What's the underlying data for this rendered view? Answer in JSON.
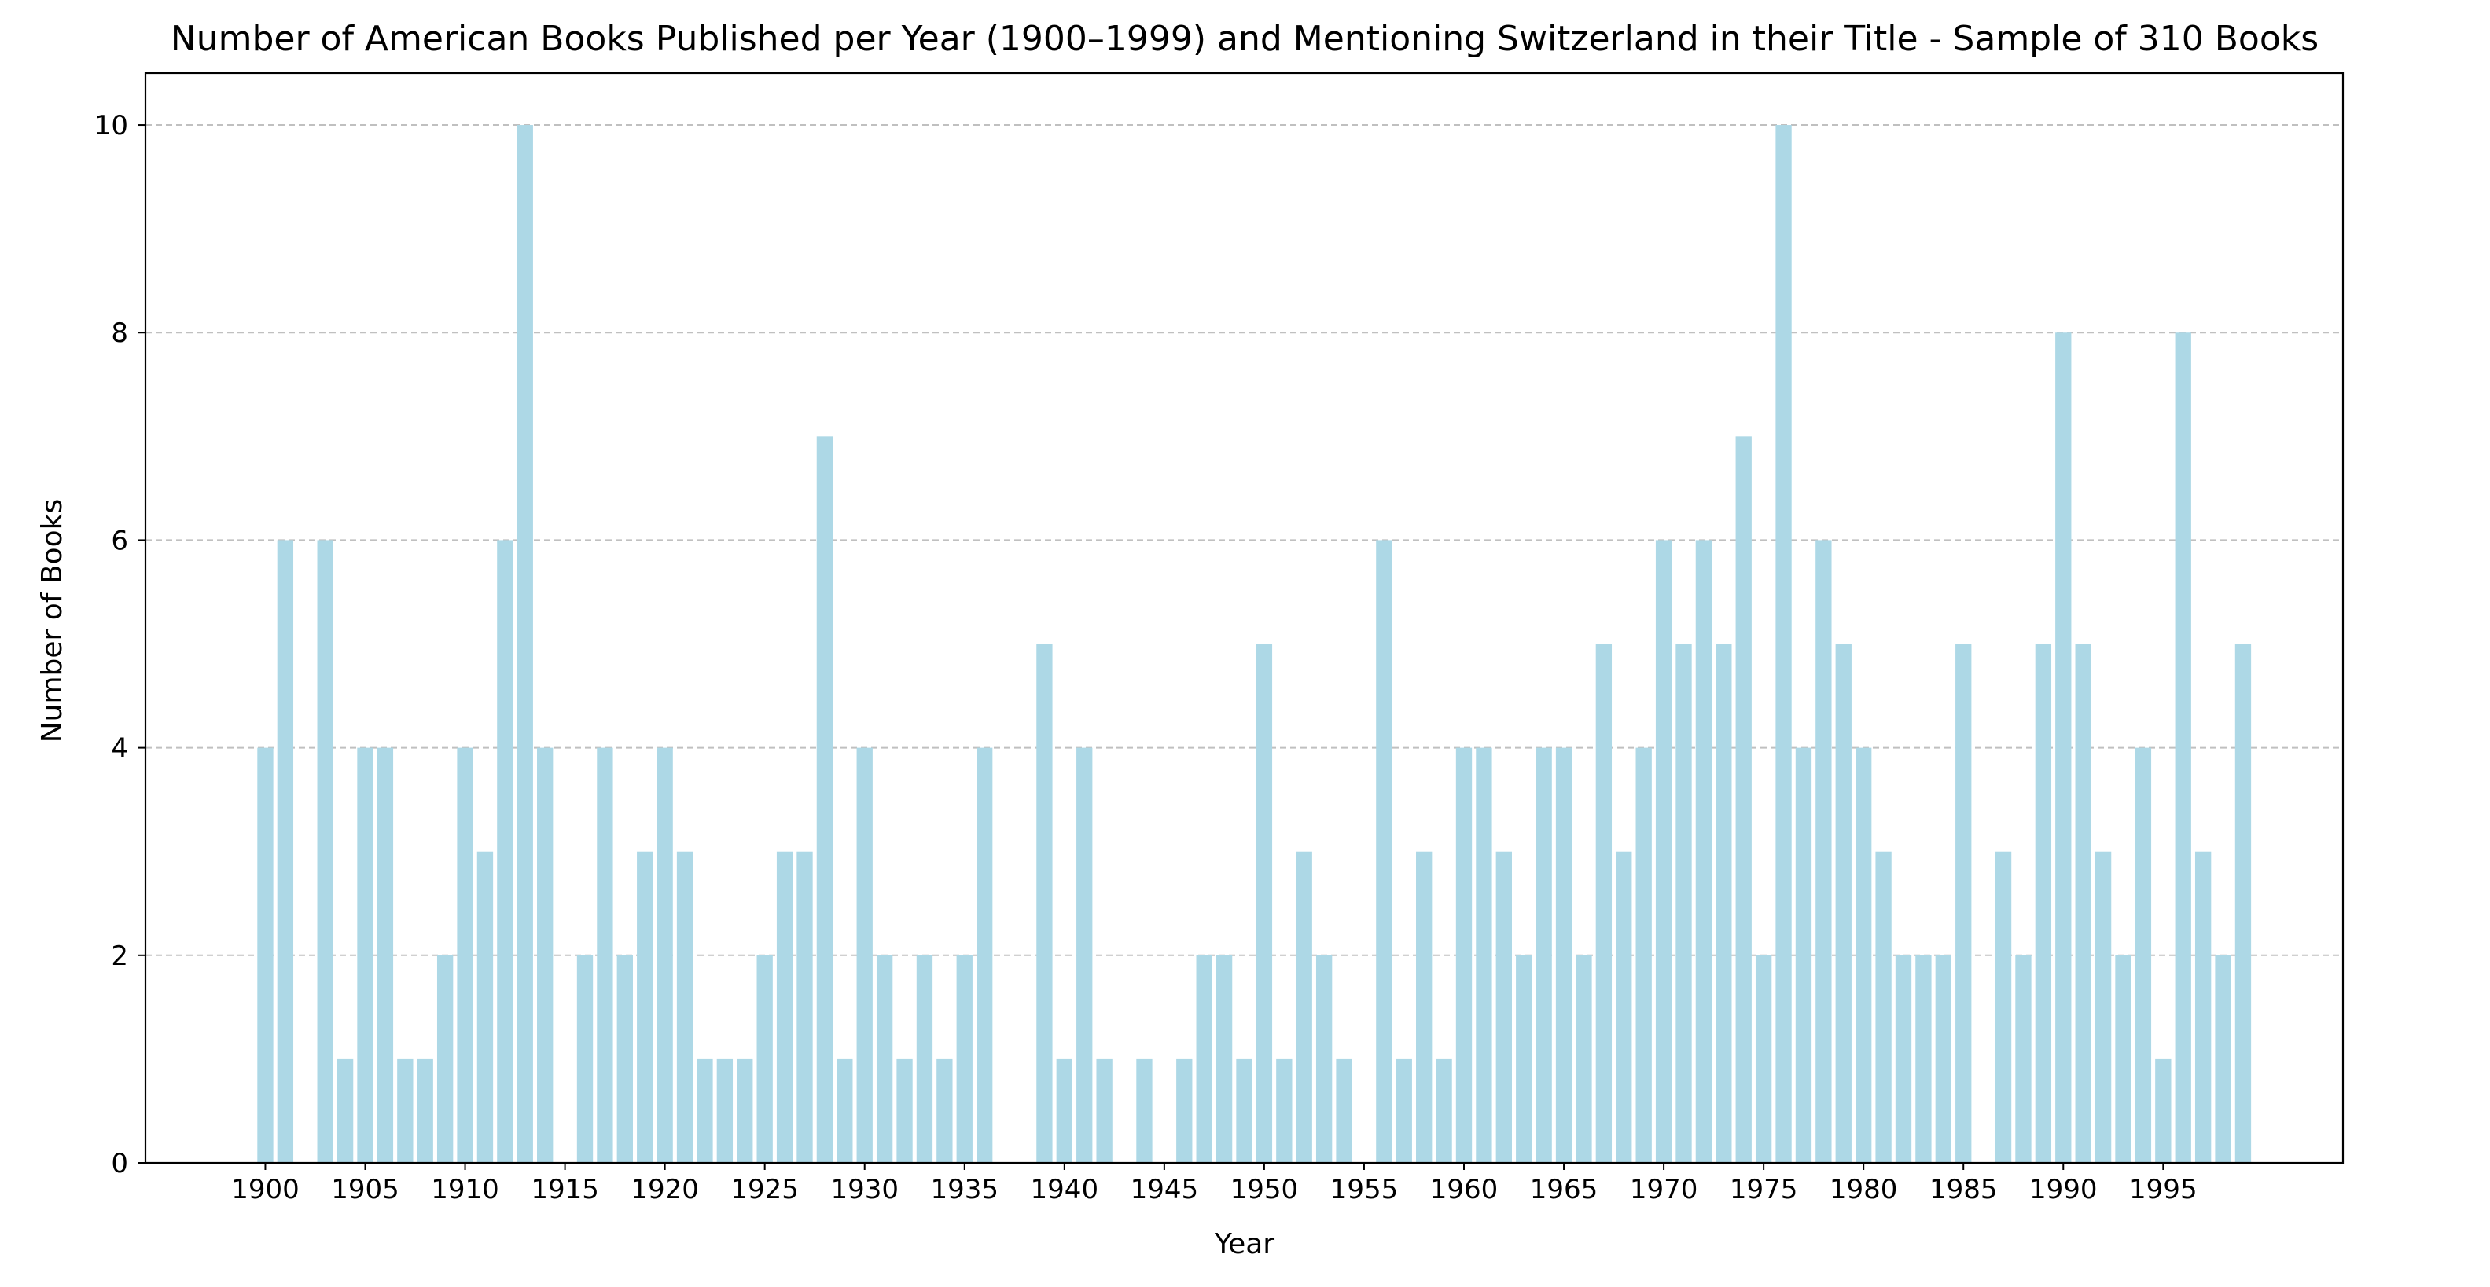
{
  "chart_data": {
    "type": "bar",
    "title": "Number of American Books Published per Year (1900–1999) and Mentioning Switzerland in their Title - Sample of 310 Books",
    "xlabel": "Year",
    "ylabel": "Number of Books",
    "bar_color": "#add8e6",
    "grid": "y, dashed",
    "xlim": [
      1894,
      2004
    ],
    "ylim": [
      0,
      10.5
    ],
    "xticks": [
      1900,
      1905,
      1910,
      1915,
      1920,
      1925,
      1930,
      1935,
      1940,
      1945,
      1950,
      1955,
      1960,
      1965,
      1970,
      1975,
      1980,
      1985,
      1990,
      1995
    ],
    "yticks": [
      0,
      2,
      4,
      6,
      8,
      10
    ],
    "x": [
      1900,
      1901,
      1903,
      1904,
      1905,
      1906,
      1907,
      1908,
      1909,
      1910,
      1911,
      1912,
      1913,
      1914,
      1916,
      1917,
      1918,
      1919,
      1920,
      1921,
      1922,
      1923,
      1924,
      1925,
      1926,
      1927,
      1928,
      1929,
      1930,
      1931,
      1932,
      1933,
      1934,
      1935,
      1936,
      1939,
      1940,
      1941,
      1942,
      1944,
      1946,
      1947,
      1948,
      1949,
      1950,
      1951,
      1952,
      1953,
      1954,
      1956,
      1957,
      1958,
      1959,
      1960,
      1961,
      1962,
      1963,
      1964,
      1965,
      1966,
      1967,
      1968,
      1969,
      1970,
      1971,
      1972,
      1973,
      1974,
      1975,
      1976,
      1977,
      1978,
      1979,
      1980,
      1981,
      1982,
      1983,
      1984,
      1985,
      1987,
      1988,
      1989,
      1990,
      1991,
      1992,
      1993,
      1994,
      1995,
      1996,
      1997,
      1998,
      1999
    ],
    "values": [
      4,
      6,
      6,
      1,
      4,
      4,
      1,
      1,
      2,
      4,
      3,
      6,
      10,
      4,
      2,
      4,
      2,
      3,
      4,
      3,
      1,
      1,
      1,
      2,
      3,
      3,
      7,
      1,
      4,
      2,
      1,
      2,
      1,
      2,
      4,
      5,
      1,
      4,
      1,
      1,
      1,
      2,
      2,
      1,
      5,
      1,
      3,
      2,
      1,
      6,
      1,
      3,
      1,
      4,
      4,
      3,
      2,
      4,
      4,
      2,
      5,
      3,
      4,
      6,
      5,
      6,
      5,
      7,
      2,
      10,
      4,
      6,
      5,
      4,
      3,
      2,
      2,
      2,
      5,
      3,
      2,
      5,
      8,
      5,
      3,
      2,
      4,
      1,
      8,
      3,
      2,
      5
    ]
  }
}
